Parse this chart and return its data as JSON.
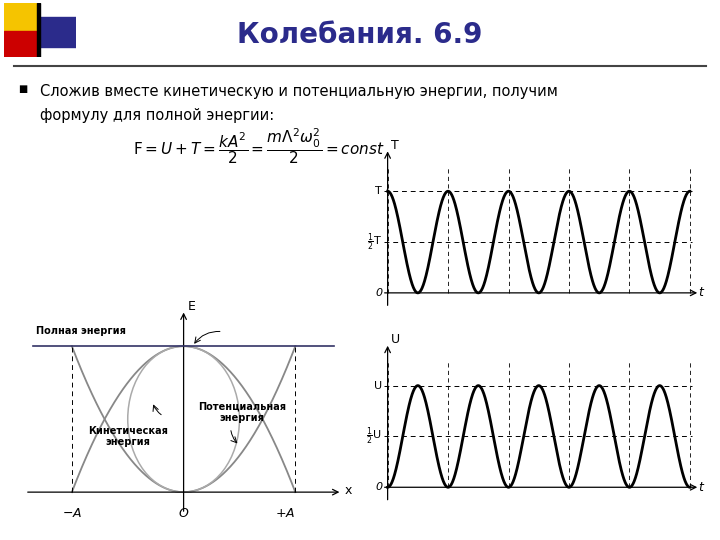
{
  "title": "Колебания. 6.9",
  "title_color": "#2b2b8b",
  "title_fontsize": 20,
  "bg_color": "#ffffff",
  "bullet_text_line1": "Сложив вместе кинетическую и потенциальную энергии, получим",
  "bullet_text_line2": "формулу для полной энергии:",
  "logo_colors": {
    "yellow": "#f5c400",
    "red": "#cc0000",
    "blue": "#2b2b8b"
  }
}
